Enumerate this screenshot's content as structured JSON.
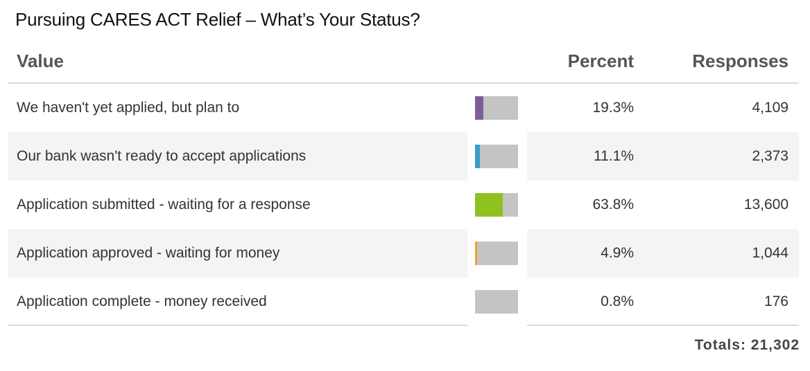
{
  "title": "Pursuing CARES ACT Relief – What’s Your Status?",
  "header": {
    "value": "Value",
    "percent": "Percent",
    "responses": "Responses"
  },
  "rows": [
    {
      "label": "We haven't yet applied, but plan to",
      "percent": "19.3%",
      "responses": "4,109",
      "color": "#7b5f96"
    },
    {
      "label": "Our bank wasn't ready to accept applications",
      "percent": "11.1%",
      "responses": "2,373",
      "color": "#3a9bc9"
    },
    {
      "label": "Application submitted - waiting for a response",
      "percent": "63.8%",
      "responses": "13,600",
      "color": "#8dc21f"
    },
    {
      "label": "Application approved - waiting for money",
      "percent": "4.9%",
      "responses": "1,044",
      "color": "#f0a12c"
    },
    {
      "label": "Application complete - money received",
      "percent": "0.8%",
      "responses": "176",
      "color": "#c4c4c4"
    }
  ],
  "totals": "Totals: 21,302",
  "chart_data": {
    "type": "table",
    "title": "Pursuing CARES ACT Relief – What’s Your Status?",
    "columns": [
      "Value",
      "Percent",
      "Responses"
    ],
    "categories": [
      "We haven't yet applied, but plan to",
      "Our bank wasn't ready to accept applications",
      "Application submitted - waiting for a response",
      "Application approved - waiting for money",
      "Application complete - money received"
    ],
    "percent": [
      19.3,
      11.1,
      63.8,
      4.9,
      0.8
    ],
    "responses": [
      4109,
      2373,
      13600,
      1044,
      176
    ],
    "total": 21302,
    "bar_track_color": "#c4c4c4"
  }
}
